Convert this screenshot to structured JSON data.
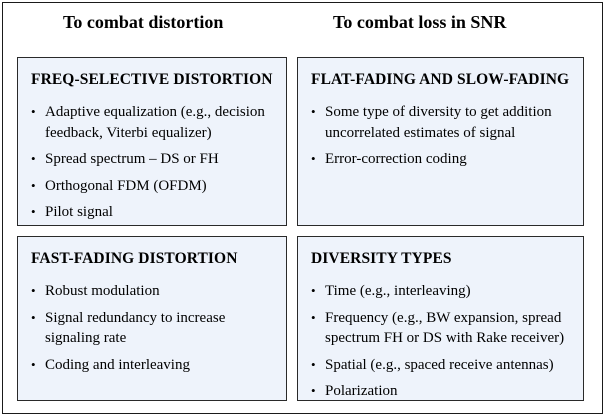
{
  "headers": {
    "left": "To combat distortion",
    "right": "To combat loss in SNR"
  },
  "panels": [
    {
      "title": "FREQ-SELECTIVE DISTORTION",
      "items": [
        "Adaptive equalization (e.g., decision feedback, Viterbi equalizer)",
        "Spread spectrum – DS or FH",
        "Orthogonal FDM (OFDM)",
        "Pilot signal"
      ]
    },
    {
      "title": "FLAT-FADING AND SLOW-FADING",
      "items": [
        "Some type of diversity to get addition uncorrelated estimates of signal",
        "Error-correction coding"
      ]
    },
    {
      "title": "FAST-FADING DISTORTION",
      "items": [
        "Robust modulation",
        "Signal redundancy to increase signaling rate",
        "Coding and interleaving"
      ]
    },
    {
      "title": "DIVERSITY TYPES",
      "items": [
        "Time (e.g., interleaving)",
        "Frequency (e.g., BW expansion, spread spectrum FH or DS with Rake receiver)",
        "Spatial (e.g., spaced receive antennas)",
        "Polarization"
      ]
    }
  ],
  "colors": {
    "panel_fill": "#eef3fb",
    "border": "#2a2a2a",
    "text": "#000000"
  },
  "bullet_glyph": "•"
}
